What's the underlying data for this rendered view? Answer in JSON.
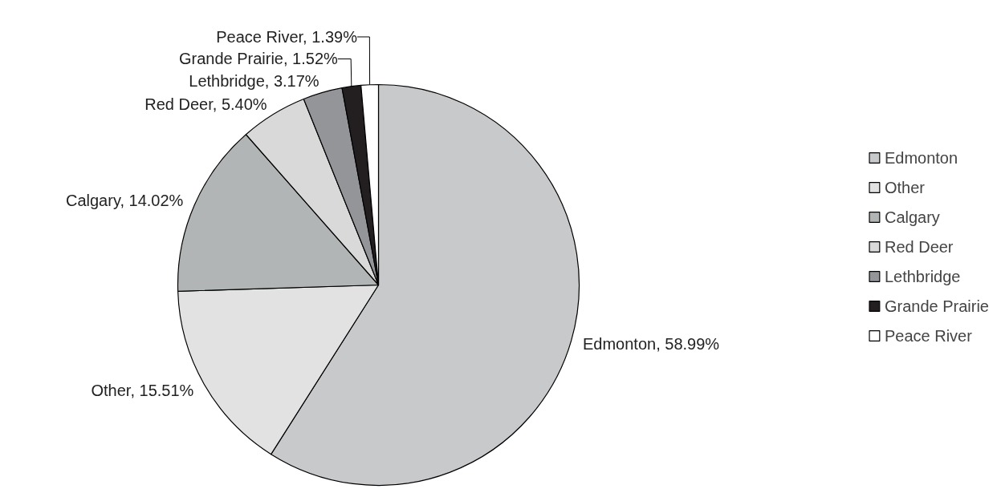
{
  "chart_data": {
    "type": "pie",
    "categories": [
      "Edmonton",
      "Other",
      "Calgary",
      "Red Deer",
      "Lethbridge",
      "Grande Prairie",
      "Peace River"
    ],
    "values": [
      58.99,
      15.51,
      14.02,
      5.4,
      3.17,
      1.52,
      1.39
    ],
    "colors": [
      "#c8c9cb",
      "#e2e2e2",
      "#b2b5b5",
      "#d9d9d9",
      "#939598",
      "#231f20",
      "#ffffff"
    ],
    "value_labels": [
      "Edmonton, 58.99%",
      "Other, 15.51%",
      "Calgary, 14.02%",
      "Red Deer, 5.40%",
      "Lethbridge, 3.17%",
      "Grande Prairie, 1.52%",
      "Peace River, 1.39%"
    ],
    "legend": "right"
  }
}
